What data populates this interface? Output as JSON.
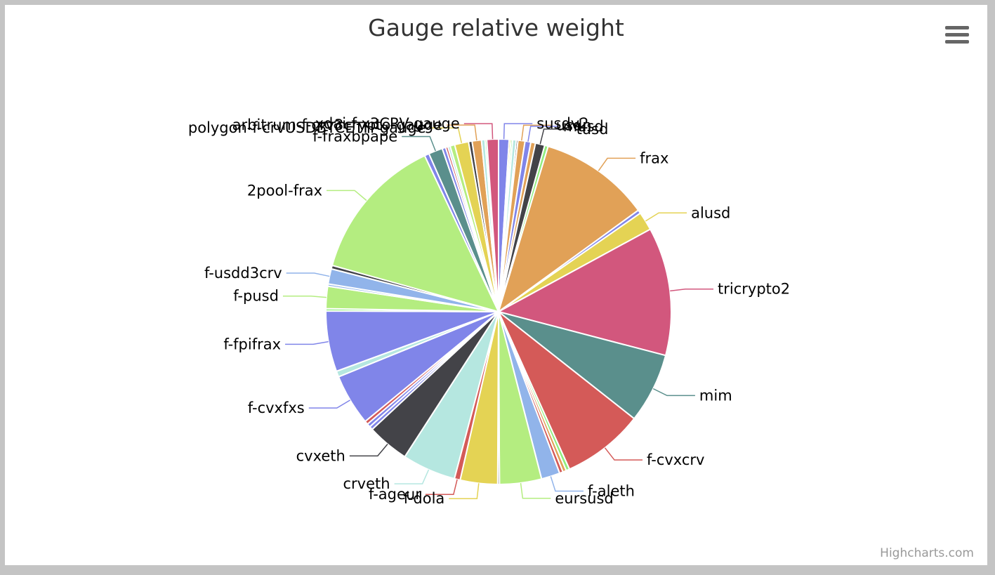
{
  "title": "Gauge relative weight",
  "credits": "Highcharts.com",
  "menu_icon": "hamburger-menu-icon",
  "chart_data": {
    "type": "pie",
    "title": "Gauge relative weight",
    "legend": "none",
    "slices": [
      {
        "name": "susdv2",
        "value": 0.9,
        "color": "#8085e9",
        "label": true
      },
      {
        "name": "",
        "value": 0.15,
        "color": "#e4d354"
      },
      {
        "name": "",
        "value": 0.15,
        "color": "#90ee7e"
      },
      {
        "name": "",
        "value": 0.3,
        "color": "#b5e7e0"
      },
      {
        "name": "",
        "value": 0.15,
        "color": "#434348"
      },
      {
        "name": "usdn",
        "value": 0.6,
        "color": "#e1a157",
        "label": true
      },
      {
        "name": "musd",
        "value": 0.5,
        "color": "#8085e9",
        "label": true
      },
      {
        "name": "",
        "value": 0.4,
        "color": "#e1a157"
      },
      {
        "name": "tusd",
        "value": 0.8,
        "color": "#434348",
        "label": true
      },
      {
        "name": "",
        "value": 0.3,
        "color": "#90ee7e"
      },
      {
        "name": "frax",
        "value": 9.5,
        "color": "#e1a157",
        "label": true
      },
      {
        "name": "",
        "value": 0.3,
        "color": "#8085e9"
      },
      {
        "name": "alusd",
        "value": 1.6,
        "color": "#e4d354",
        "label": true
      },
      {
        "name": "tricrypto2",
        "value": 11,
        "color": "#d2577d",
        "label": true
      },
      {
        "name": "mim",
        "value": 6,
        "color": "#5a8f8c",
        "label": true
      },
      {
        "name": "f-cvxcrv",
        "value": 7,
        "color": "#d45a58",
        "label": true
      },
      {
        "name": "",
        "value": 0.3,
        "color": "#90ee7e"
      },
      {
        "name": "",
        "value": 0.3,
        "color": "#e1a157"
      },
      {
        "name": "",
        "value": 0.3,
        "color": "#d45a58"
      },
      {
        "name": "f-aleth",
        "value": 1.6,
        "color": "#91b4ea",
        "label": true
      },
      {
        "name": "eursusd",
        "value": 3.6,
        "color": "#b4ed80",
        "label": true
      },
      {
        "name": "",
        "value": 0.15,
        "color": "#434348"
      },
      {
        "name": "f-dola",
        "value": 3.2,
        "color": "#e4d354",
        "label": true
      },
      {
        "name": "f-ageur",
        "value": 0.5,
        "color": "#d45a58",
        "label": true
      },
      {
        "name": "crveth",
        "value": 4.6,
        "color": "#b5e7e0",
        "label": true
      },
      {
        "name": "cvxeth",
        "value": 3.6,
        "color": "#434348",
        "label": true
      },
      {
        "name": "",
        "value": 0.3,
        "color": "#8085e9"
      },
      {
        "name": "",
        "value": 0.3,
        "color": "#8085e9"
      },
      {
        "name": "",
        "value": 0.3,
        "color": "#d45a58"
      },
      {
        "name": "f-cvxfxs",
        "value": 4.4,
        "color": "#8085e9",
        "label": true
      },
      {
        "name": "",
        "value": 0.5,
        "color": "#b5e7e0"
      },
      {
        "name": "f-fpifrax",
        "value": 5.2,
        "color": "#8085e9",
        "label": true
      },
      {
        "name": "",
        "value": 0.2,
        "color": "#90ee7e"
      },
      {
        "name": "f-pusd",
        "value": 1.9,
        "color": "#b4ed80",
        "label": true
      },
      {
        "name": "",
        "value": 0.2,
        "color": "#91b4ea"
      },
      {
        "name": "f-usdd3crv",
        "value": 1.3,
        "color": "#91b4ea",
        "label": true
      },
      {
        "name": "",
        "value": 0.3,
        "color": "#434348"
      },
      {
        "name": "2pool-frax",
        "value": 12.5,
        "color": "#b4ed80",
        "label": true
      },
      {
        "name": "",
        "value": 0.4,
        "color": "#8085e9"
      },
      {
        "name": "f-fraxbpape",
        "value": 1.2,
        "color": "#5a8f8c",
        "label": true
      },
      {
        "name": "",
        "value": 0.3,
        "color": "#8085e9"
      },
      {
        "name": "",
        "value": 0.2,
        "color": "#d45a58"
      },
      {
        "name": "",
        "value": 0.2,
        "color": "#b5e7e0"
      },
      {
        "name": "",
        "value": 0.4,
        "color": "#b4ed80"
      },
      {
        "name": "polygon-f-crvUSDBTCETH-gauge",
        "value": 1.2,
        "color": "#e4d354",
        "label": true
      },
      {
        "name": "",
        "value": 0.3,
        "color": "#434348"
      },
      {
        "name": "arbitrum-f-crv3crypto-gauge",
        "value": 0.8,
        "color": "#e1a157",
        "label": true
      },
      {
        "name": "",
        "value": 0.3,
        "color": "#b5e7e0"
      },
      {
        "name": "",
        "value": 0.15,
        "color": "#90ee7e"
      },
      {
        "name": "xdai-f-x3CRV-gauge",
        "value": 1.0,
        "color": "#d2577d",
        "label": true
      }
    ]
  }
}
